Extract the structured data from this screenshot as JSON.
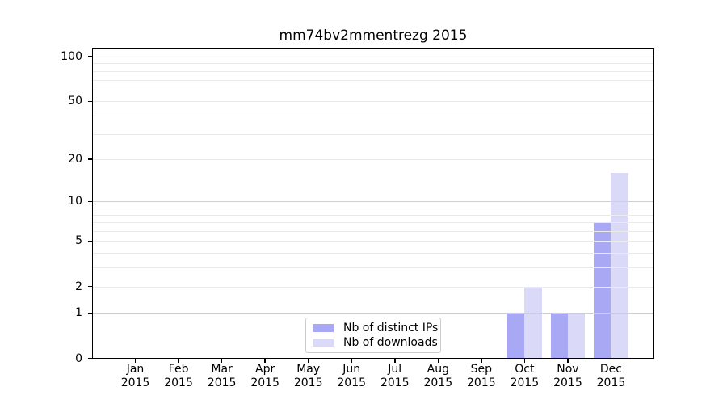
{
  "chart_data": {
    "type": "bar",
    "title": "mm74bv2mmentrezg 2015",
    "categories": [
      {
        "month": "Jan",
        "year": "2015"
      },
      {
        "month": "Feb",
        "year": "2015"
      },
      {
        "month": "Mar",
        "year": "2015"
      },
      {
        "month": "Apr",
        "year": "2015"
      },
      {
        "month": "May",
        "year": "2015"
      },
      {
        "month": "Jun",
        "year": "2015"
      },
      {
        "month": "Jul",
        "year": "2015"
      },
      {
        "month": "Aug",
        "year": "2015"
      },
      {
        "month": "Sep",
        "year": "2015"
      },
      {
        "month": "Oct",
        "year": "2015"
      },
      {
        "month": "Nov",
        "year": "2015"
      },
      {
        "month": "Dec",
        "year": "2015"
      }
    ],
    "series": [
      {
        "name": "Nb of distinct IPs",
        "color": "#a8a8f4",
        "values": [
          0,
          0,
          0,
          0,
          0,
          0,
          0,
          0,
          0,
          1,
          1,
          7
        ]
      },
      {
        "name": "Nb of downloads",
        "color": "#dadaf8",
        "values": [
          0,
          0,
          0,
          0,
          0,
          0,
          0,
          0,
          0,
          2,
          1,
          16
        ]
      }
    ],
    "y_axis": {
      "scale": "log1p",
      "ticks": [
        0,
        1,
        2,
        5,
        10,
        20,
        50,
        100
      ],
      "top_value": 114,
      "major_gridlines": [
        1,
        10,
        100
      ],
      "minor_gridlines": [
        2,
        3,
        4,
        5,
        6,
        7,
        8,
        9,
        20,
        30,
        40,
        50,
        60,
        70,
        80,
        90
      ]
    },
    "legend_position": "lower center",
    "grid": true,
    "colors": {
      "major_grid": "#cfcfcf",
      "minor_grid": "#eaeaea",
      "spine": "#000000",
      "background": "#ffffff"
    }
  }
}
